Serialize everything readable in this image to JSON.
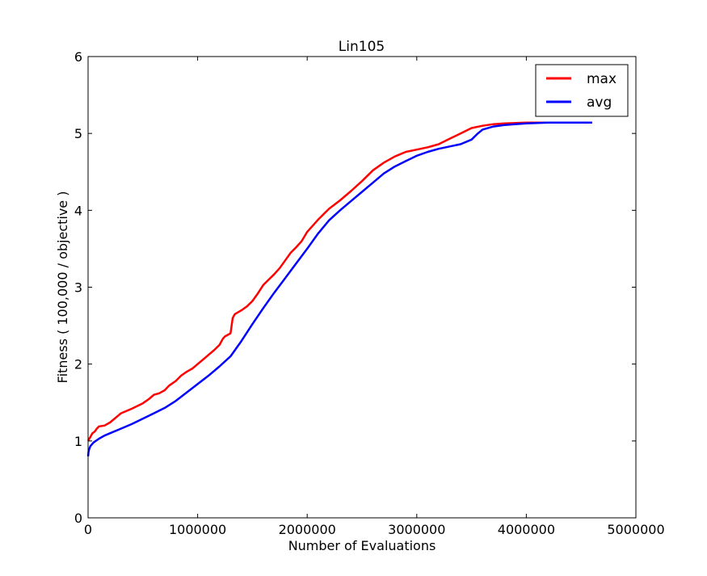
{
  "colors": {
    "max": "#ff0000",
    "avg": "#0000ff",
    "axes": "#000000",
    "background": "#ffffff"
  },
  "chart_data": {
    "type": "line",
    "title": "Lin105",
    "xlabel": "Number of Evaluations",
    "ylabel": "Fitness ( 100,000 / objective )",
    "xlim": [
      0,
      5000000
    ],
    "ylim": [
      0,
      6
    ],
    "xticks": [
      0,
      1000000,
      2000000,
      3000000,
      4000000,
      5000000
    ],
    "xtick_labels": [
      "0",
      "1000000",
      "2000000",
      "3000000",
      "4000000",
      "5000000"
    ],
    "yticks": [
      0,
      1,
      2,
      3,
      4,
      5,
      6
    ],
    "ytick_labels": [
      "0",
      "1",
      "2",
      "3",
      "4",
      "5",
      "6"
    ],
    "grid": false,
    "legend": {
      "placement": "top-right",
      "entries": [
        "max",
        "avg"
      ]
    },
    "series": [
      {
        "name": "max",
        "color": "#ff0000",
        "x": [
          0,
          20000,
          40000,
          60000,
          80000,
          100000,
          150000,
          200000,
          250000,
          300000,
          400000,
          500000,
          560000,
          600000,
          650000,
          700000,
          740000,
          800000,
          850000,
          900000,
          950000,
          1000000,
          1050000,
          1100000,
          1150000,
          1200000,
          1230000,
          1250000,
          1300000,
          1320000,
          1340000,
          1400000,
          1450000,
          1500000,
          1550000,
          1600000,
          1650000,
          1700000,
          1750000,
          1800000,
          1850000,
          1900000,
          1950000,
          2000000,
          2050000,
          2100000,
          2150000,
          2200000,
          2300000,
          2400000,
          2500000,
          2600000,
          2700000,
          2800000,
          2900000,
          3000000,
          3100000,
          3200000,
          3300000,
          3400000,
          3500000,
          3600000,
          3700000,
          3800000,
          4000000,
          4300000,
          4600000
        ],
        "y": [
          1.0,
          1.05,
          1.1,
          1.12,
          1.16,
          1.19,
          1.2,
          1.24,
          1.3,
          1.36,
          1.42,
          1.49,
          1.55,
          1.6,
          1.62,
          1.66,
          1.72,
          1.78,
          1.85,
          1.9,
          1.94,
          2.0,
          2.06,
          2.12,
          2.18,
          2.25,
          2.33,
          2.36,
          2.4,
          2.6,
          2.65,
          2.7,
          2.75,
          2.82,
          2.92,
          3.03,
          3.1,
          3.17,
          3.25,
          3.35,
          3.45,
          3.52,
          3.6,
          3.72,
          3.8,
          3.88,
          3.95,
          4.02,
          4.13,
          4.25,
          4.38,
          4.52,
          4.62,
          4.7,
          4.76,
          4.79,
          4.82,
          4.86,
          4.93,
          5.0,
          5.07,
          5.1,
          5.12,
          5.13,
          5.14,
          5.14,
          5.14
        ]
      },
      {
        "name": "avg",
        "color": "#0000ff",
        "x": [
          0,
          5000,
          20000,
          50000,
          100000,
          150000,
          200000,
          300000,
          400000,
          500000,
          600000,
          700000,
          800000,
          900000,
          1000000,
          1100000,
          1200000,
          1300000,
          1400000,
          1500000,
          1600000,
          1700000,
          1800000,
          1900000,
          2000000,
          2100000,
          2200000,
          2300000,
          2400000,
          2500000,
          2600000,
          2700000,
          2800000,
          2900000,
          3000000,
          3100000,
          3200000,
          3300000,
          3400000,
          3500000,
          3550000,
          3600000,
          3700000,
          3800000,
          3900000,
          4000000,
          4200000,
          4600000
        ],
        "y": [
          0.8,
          0.87,
          0.93,
          0.98,
          1.03,
          1.07,
          1.1,
          1.16,
          1.22,
          1.29,
          1.36,
          1.43,
          1.52,
          1.63,
          1.74,
          1.85,
          1.97,
          2.1,
          2.3,
          2.52,
          2.73,
          2.93,
          3.12,
          3.31,
          3.5,
          3.7,
          3.87,
          4.0,
          4.12,
          4.24,
          4.36,
          4.48,
          4.57,
          4.64,
          4.71,
          4.76,
          4.8,
          4.83,
          4.86,
          4.92,
          4.99,
          5.05,
          5.09,
          5.11,
          5.12,
          5.13,
          5.14,
          5.14
        ]
      }
    ]
  }
}
